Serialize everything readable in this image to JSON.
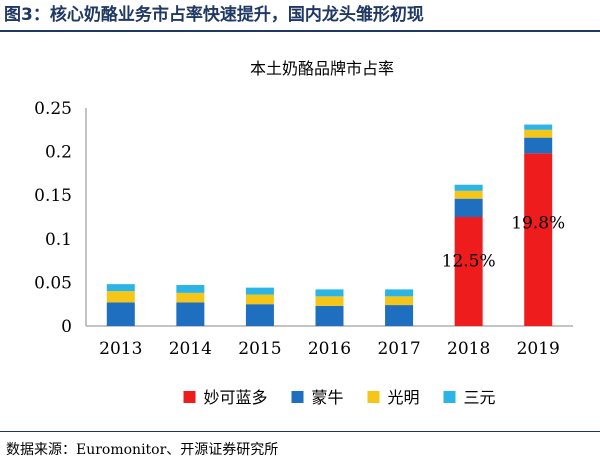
{
  "figure_title": "图3：核心奶酪业务市占率快速提升，国内龙头雏形初现",
  "source_note": "数据来源：Euromonitor、开源证券研究所",
  "chart_data": {
    "type": "bar",
    "stacked": true,
    "title": "本土奶酪品牌市占率",
    "categories": [
      "2013",
      "2014",
      "2015",
      "2016",
      "2017",
      "2018",
      "2019"
    ],
    "series": [
      {
        "name": "妙可蓝多",
        "color": "#ee1c1c",
        "values": [
          0.0,
          0.0,
          0.0,
          0.0,
          0.0,
          0.125,
          0.198
        ]
      },
      {
        "name": "蒙牛",
        "color": "#1e6fbf",
        "values": [
          0.027,
          0.027,
          0.025,
          0.023,
          0.024,
          0.021,
          0.018
        ]
      },
      {
        "name": "光明",
        "color": "#f5c518",
        "values": [
          0.013,
          0.011,
          0.011,
          0.011,
          0.01,
          0.009,
          0.009
        ]
      },
      {
        "name": "三元",
        "color": "#2db4e6",
        "values": [
          0.008,
          0.009,
          0.008,
          0.008,
          0.008,
          0.007,
          0.006
        ]
      }
    ],
    "data_labels": [
      {
        "category": "2018",
        "series": "妙可蓝多",
        "text": "12.5%"
      },
      {
        "category": "2019",
        "series": "妙可蓝多",
        "text": "19.8%"
      }
    ],
    "yticks": [
      "0",
      "0.05",
      "0.1",
      "0.15",
      "0.2",
      "0.25"
    ],
    "ylim": [
      0,
      0.25
    ],
    "legend_position": "bottom"
  }
}
